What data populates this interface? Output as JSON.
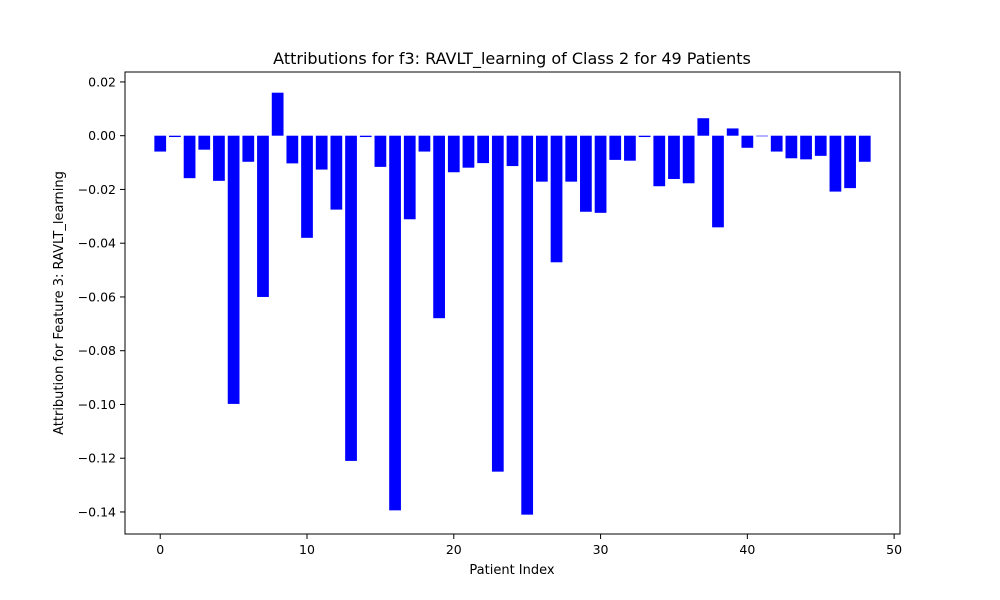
{
  "chart_data": {
    "type": "bar",
    "title": "Attributions for f3: RAVLT_learning of Class 2 for 49 Patients",
    "xlabel": "Patient Index",
    "ylabel": "Attribution for Feature 3: RAVLT_learning",
    "bar_color": "#0000ff",
    "xlim": [
      -2.4,
      50.4
    ],
    "ylim": [
      -0.1482,
      0.0237
    ],
    "xticks": [
      0,
      10,
      20,
      30,
      40,
      50
    ],
    "xtick_labels": [
      "0",
      "10",
      "20",
      "30",
      "40",
      "50"
    ],
    "yticks": [
      0.02,
      0.0,
      -0.02,
      -0.04,
      -0.06,
      -0.08,
      -0.1,
      -0.12,
      -0.14
    ],
    "ytick_labels": [
      "0.02",
      "0.00",
      "−0.02",
      "−0.04",
      "−0.06",
      "−0.08",
      "−0.10",
      "−0.12",
      "−0.14"
    ],
    "grid": false,
    "x": [
      0,
      1,
      2,
      3,
      4,
      5,
      6,
      7,
      8,
      9,
      10,
      11,
      12,
      13,
      14,
      15,
      16,
      17,
      18,
      19,
      20,
      21,
      22,
      23,
      24,
      25,
      26,
      27,
      28,
      29,
      30,
      31,
      32,
      33,
      34,
      35,
      36,
      37,
      38,
      39,
      40,
      41,
      42,
      43,
      44,
      45,
      46,
      47,
      48
    ],
    "values": [
      -0.0059,
      -0.0005,
      -0.0158,
      -0.0052,
      -0.0168,
      -0.0998,
      -0.0097,
      -0.06,
      0.016,
      -0.0103,
      -0.038,
      -0.0126,
      -0.0275,
      -0.121,
      -0.0005,
      -0.0116,
      -0.1394,
      -0.0311,
      -0.0059,
      -0.0679,
      -0.0136,
      -0.0119,
      -0.0102,
      -0.125,
      -0.0113,
      -0.141,
      -0.0171,
      -0.0471,
      -0.0171,
      -0.0283,
      -0.0287,
      -0.009,
      -0.0093,
      -0.0005,
      -0.0188,
      -0.0161,
      -0.0177,
      0.0065,
      -0.0341,
      0.0027,
      -0.0045,
      0.0,
      -0.0059,
      -0.0084,
      -0.0088,
      -0.0075,
      -0.0208,
      -0.0195,
      -0.0097
    ]
  }
}
